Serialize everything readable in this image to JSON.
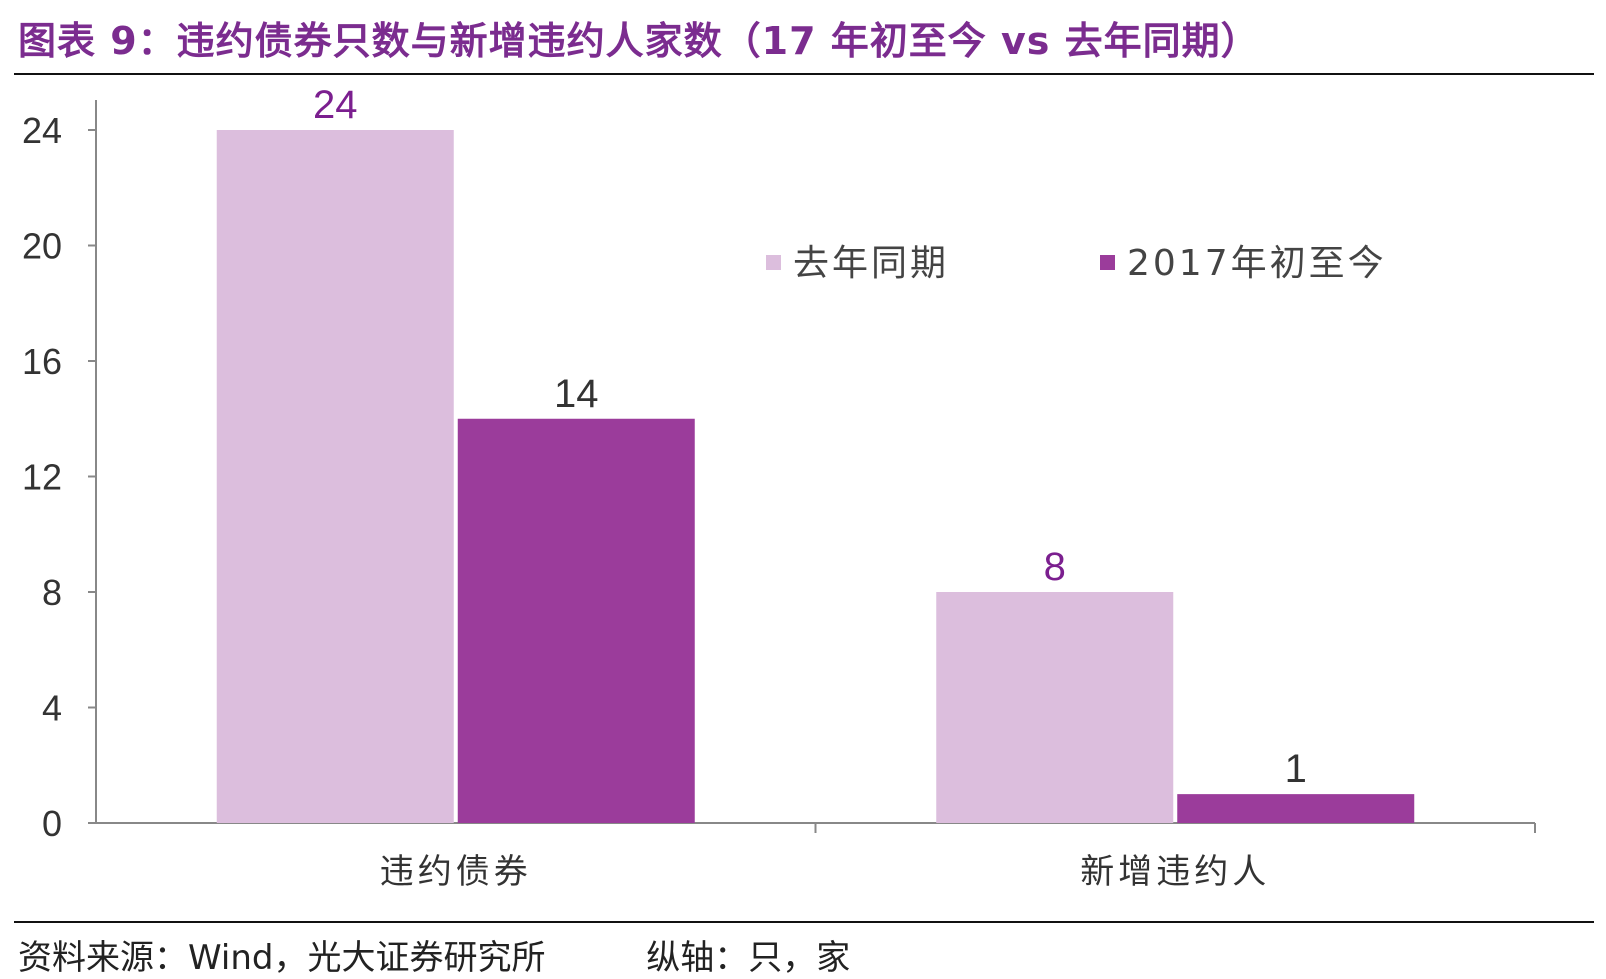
{
  "title": "图表 9：违约债券只数与新增违约人家数（17 年初至今 vs 去年同期）",
  "footer": {
    "source": "资料来源：Wind，光大证券研究所",
    "axis_note": "纵轴：只，家"
  },
  "colors": {
    "title": "#7b2c8f",
    "series_prev": "#dcbedd",
    "series_curr": "#9b3c9b",
    "label_purple": "#7b1f8f",
    "label_dark": "#333333",
    "axis": "#888888"
  },
  "chart_data": {
    "type": "bar",
    "categories": [
      "违约债券",
      "新增违约人"
    ],
    "series": [
      {
        "name": "去年同期",
        "values": [
          24,
          8
        ]
      },
      {
        "name": "2017年初至今",
        "values": [
          14,
          1
        ]
      }
    ],
    "ylim": [
      0,
      24
    ],
    "yticks": [
      0,
      4,
      8,
      12,
      16,
      20,
      24
    ],
    "legend_position": "top-right",
    "grid": false,
    "title": "",
    "xlabel": "",
    "ylabel": ""
  }
}
